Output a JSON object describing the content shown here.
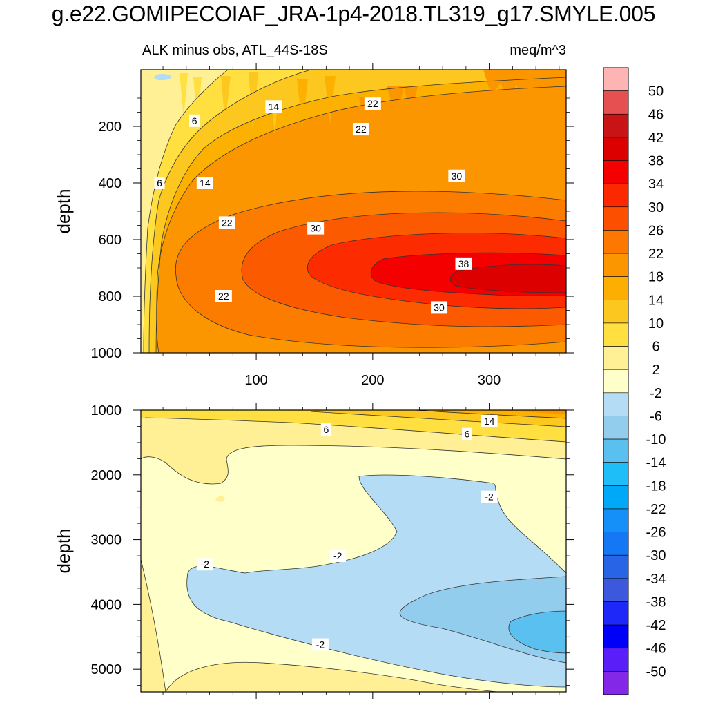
{
  "title": "g.e22.GOMIPECOIAF_JRA-1p4-2018.TL319_g17.SMYLE.005",
  "subtitle_left": "ALK minus obs, ATL_44S-18S",
  "subtitle_right": "meq/m^3",
  "colors": {
    "lt2": "#b4dcf4",
    "lt6": "#92cdee",
    "lt10": "#5ac0f0",
    "c_2_2": "#ffffca",
    "c2": "#fff096",
    "c6": "#ffe040",
    "c10": "#fcc820",
    "c14": "#fcb000",
    "c18": "#fc9600",
    "c22": "#fc7c00",
    "c26": "#fc5a00",
    "c30": "#fc2c00",
    "c34": "#f40000",
    "c38": "#dc0000",
    "c42": "#cc1010",
    "line": "#333333"
  },
  "chart_data": [
    {
      "type": "heatmap",
      "name": "upper panel",
      "ylabel": "depth",
      "xlim": [
        1,
        366
      ],
      "ylim": [
        1000,
        0
      ],
      "x_ticks": [
        100,
        200,
        300
      ],
      "y_ticks": [
        200,
        400,
        600,
        800,
        1000
      ],
      "contour_labels": [
        {
          "text": "6",
          "x": 47,
          "y": 180
        },
        {
          "text": "14",
          "x": 115,
          "y": 130
        },
        {
          "text": "22",
          "x": 200,
          "y": 120
        },
        {
          "text": "22",
          "x": 190,
          "y": 210
        },
        {
          "text": "6",
          "x": 17,
          "y": 400
        },
        {
          "text": "14",
          "x": 56,
          "y": 400
        },
        {
          "text": "30",
          "x": 272,
          "y": 375
        },
        {
          "text": "22",
          "x": 75,
          "y": 540
        },
        {
          "text": "30",
          "x": 151,
          "y": 560
        },
        {
          "text": "38",
          "x": 278,
          "y": 685
        },
        {
          "text": "22",
          "x": 72,
          "y": 800
        },
        {
          "text": "30",
          "x": 257,
          "y": 840
        }
      ]
    },
    {
      "type": "heatmap",
      "name": "lower panel",
      "ylabel": "depth",
      "xlim": [
        1,
        366
      ],
      "ylim": [
        5350,
        1000
      ],
      "x_ticks": [
        100,
        200,
        300
      ],
      "y_ticks": [
        1000,
        2000,
        3000,
        4000,
        5000
      ],
      "contour_labels": [
        {
          "text": "6",
          "x": 160,
          "y": 1300
        },
        {
          "text": "14",
          "x": 300,
          "y": 1170
        },
        {
          "text": "6",
          "x": 281,
          "y": 1370
        },
        {
          "text": "-2",
          "x": 300,
          "y": 2340
        },
        {
          "text": "-2",
          "x": 56,
          "y": 3380
        },
        {
          "text": "-2",
          "x": 170,
          "y": 3250
        },
        {
          "text": "-2",
          "x": 155,
          "y": 4620
        }
      ]
    }
  ],
  "colorbar": {
    "labels": [
      "50",
      "46",
      "42",
      "38",
      "34",
      "30",
      "26",
      "22",
      "18",
      "14",
      "10",
      "6",
      "2",
      "-2",
      "-6",
      "-10",
      "-14",
      "-18",
      "-22",
      "-26",
      "-30",
      "-34",
      "-38",
      "-42",
      "-46",
      "-50"
    ],
    "box_colors": [
      "#ffb4b4",
      "#e65050",
      "#c81414",
      "#dc0000",
      "#f40000",
      "#fc2800",
      "#fc5000",
      "#fc7800",
      "#fc9600",
      "#fcaf00",
      "#fcc820",
      "#ffe040",
      "#fff096",
      "#ffffca",
      "#b4dcf4",
      "#92cdee",
      "#5ac0f0",
      "#1ebef8",
      "#00a8f8",
      "#1490f8",
      "#1478f4",
      "#2864e6",
      "#3c58dc",
      "#1e28f8",
      "#0000f8",
      "#5a1ef8",
      "#8228e6"
    ]
  }
}
